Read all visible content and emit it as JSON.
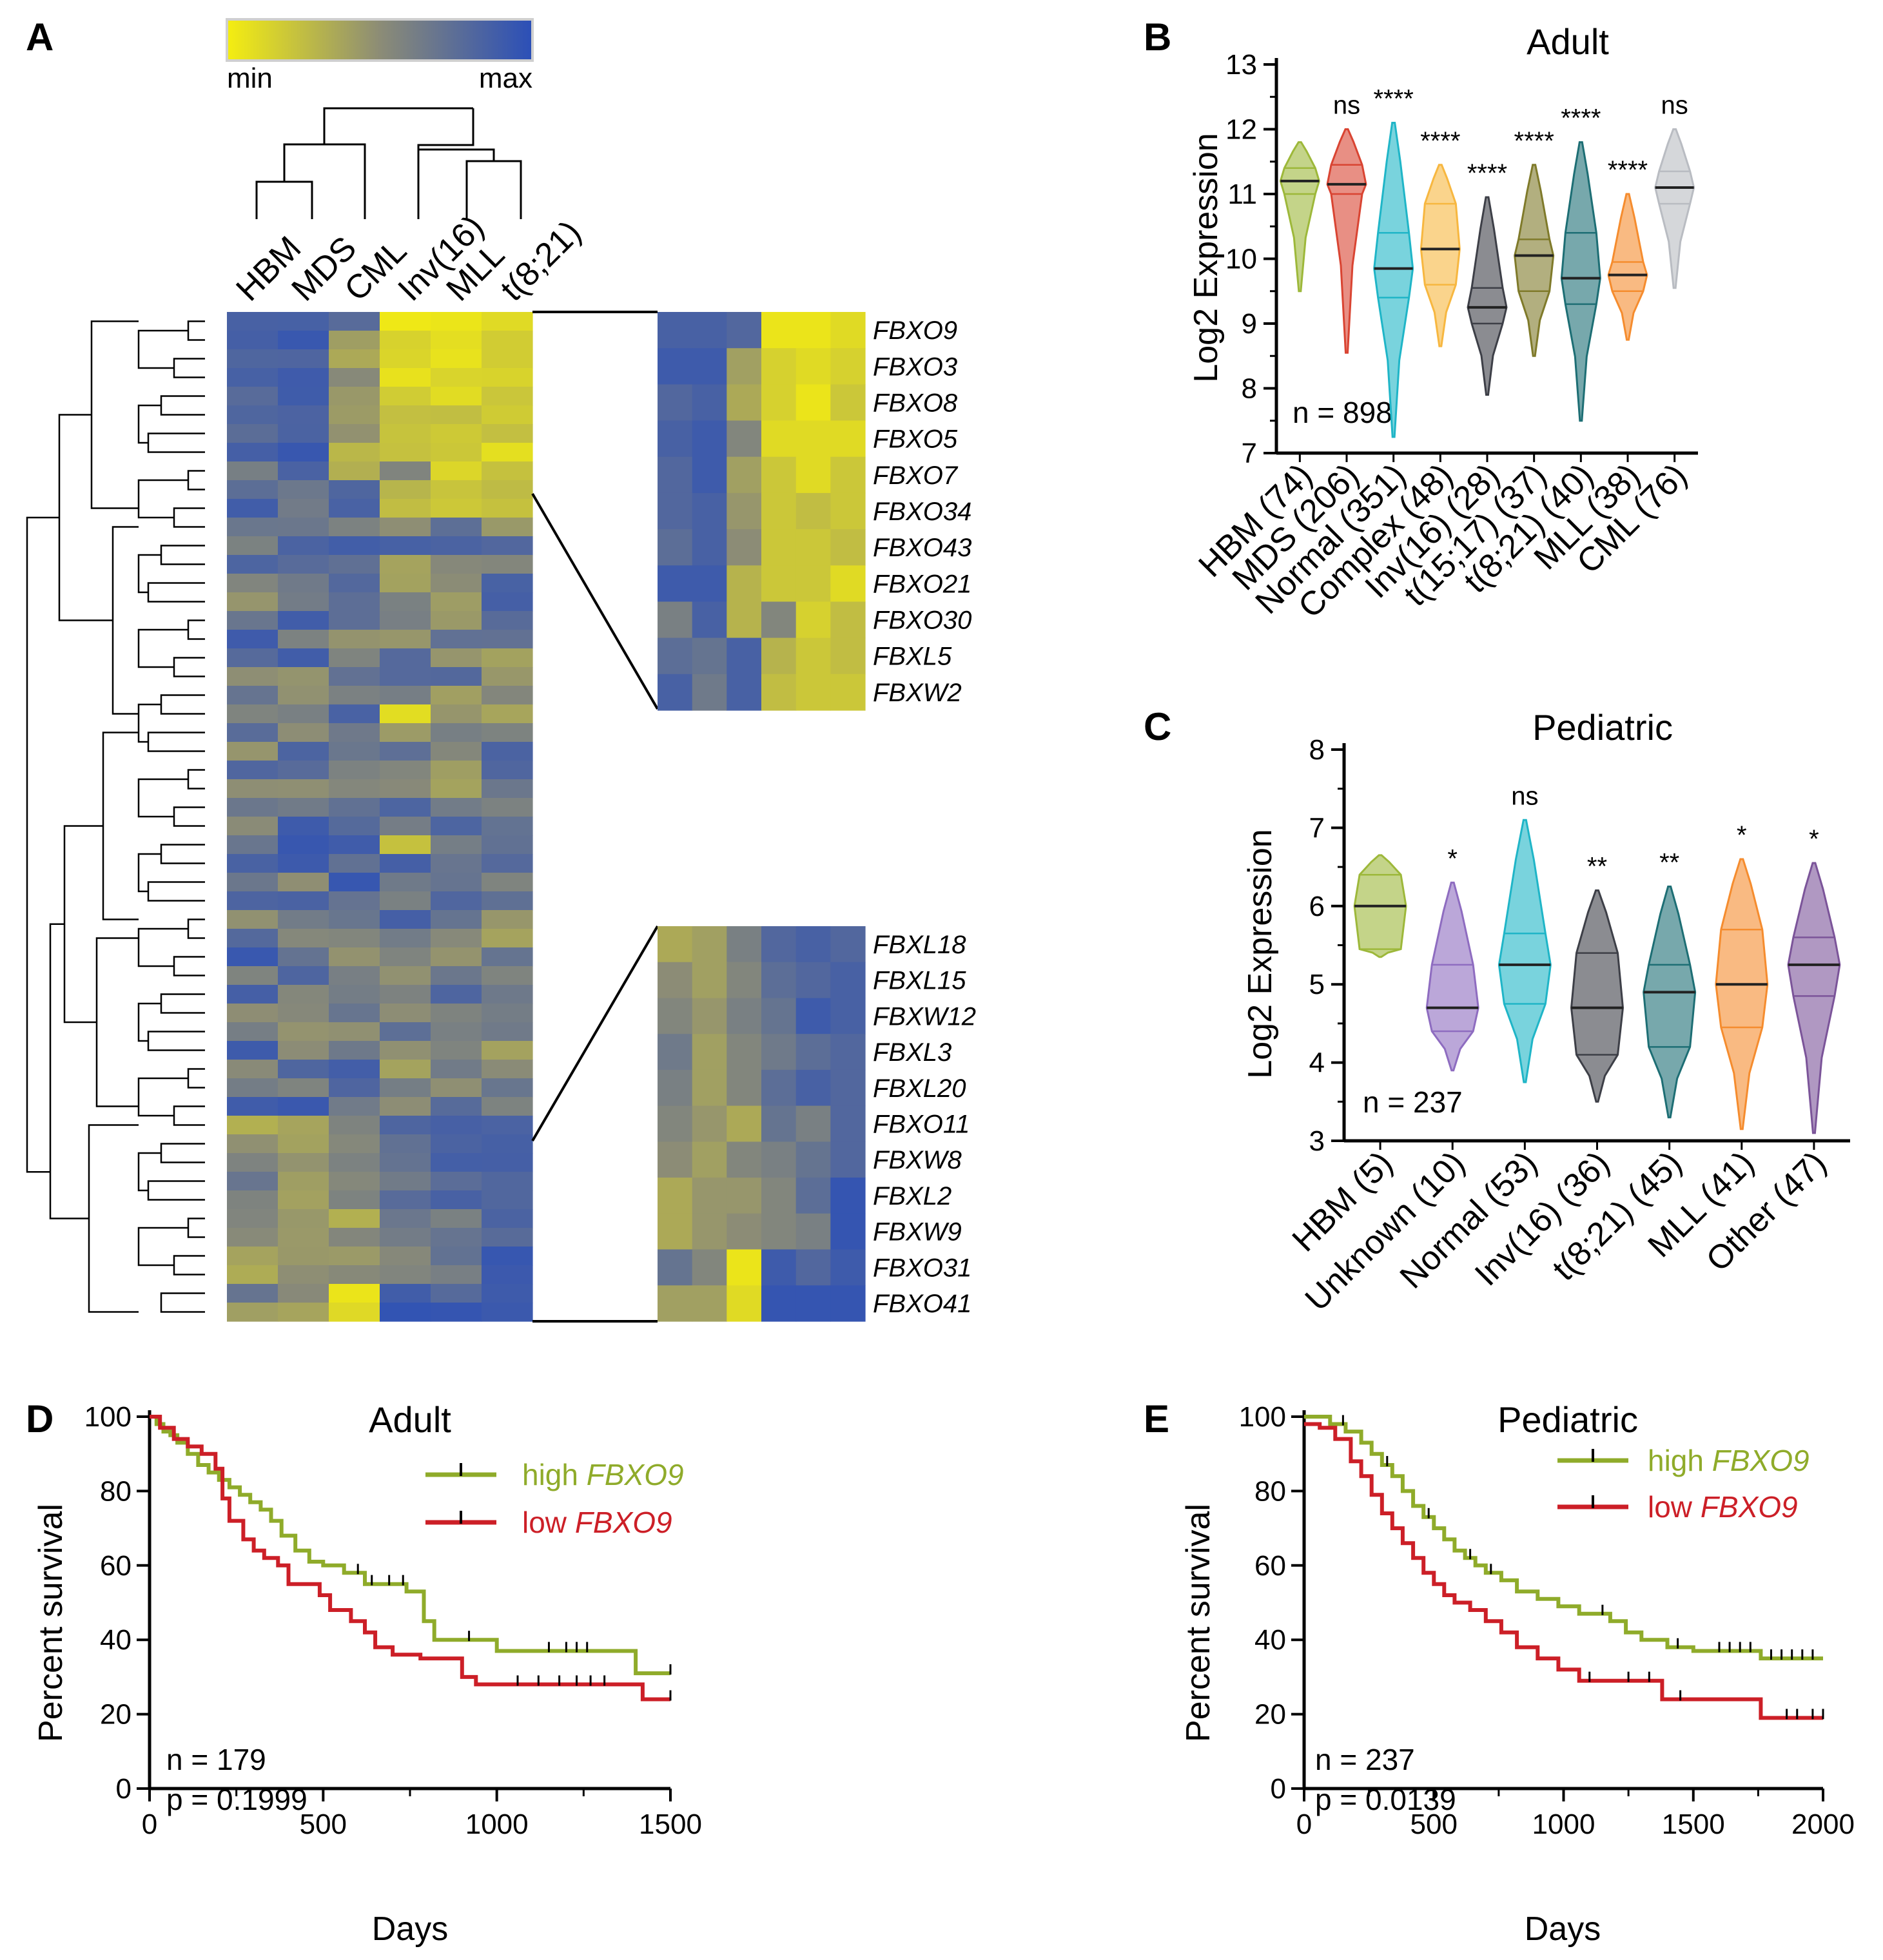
{
  "panels": {
    "a": "A",
    "b": "B",
    "c": "C",
    "d": "D",
    "e": "E"
  },
  "colors": {
    "heat_low": "#F5EE10",
    "heat_mid": "#8C8C76",
    "heat_high": "#2B4FB8",
    "green": "#8FAB2A",
    "red": "#CC1F27"
  },
  "heatmap": {
    "legend_min": "min",
    "legend_max": "max",
    "columns": [
      "HBM",
      "MDS",
      "CML",
      "Inv(16)",
      "MLL",
      "t(8;21)"
    ],
    "top_genes": [
      "FBXO9",
      "FBXO3",
      "FBXO8",
      "FBXO5",
      "FBXO7",
      "FBXO34",
      "FBXO43",
      "FBXO21",
      "FBXO30",
      "FBXL5",
      "FBXW2"
    ],
    "bottom_genes": [
      "FBXL18",
      "FBXL15",
      "FBXW12",
      "FBXL3",
      "FBXL20",
      "FBXO11",
      "FBXW8",
      "FBXL2",
      "FBXW9",
      "FBXO31",
      "FBXO41"
    ],
    "top_values": [
      [
        0.85,
        0.85,
        0.8,
        0.05,
        0.05,
        0.1
      ],
      [
        0.9,
        0.9,
        0.4,
        0.15,
        0.1,
        0.15
      ],
      [
        0.8,
        0.85,
        0.35,
        0.15,
        0.05,
        0.2
      ],
      [
        0.85,
        0.9,
        0.55,
        0.1,
        0.1,
        0.1
      ],
      [
        0.8,
        0.9,
        0.4,
        0.2,
        0.1,
        0.2
      ],
      [
        0.8,
        0.85,
        0.45,
        0.2,
        0.25,
        0.2
      ],
      [
        0.75,
        0.85,
        0.5,
        0.2,
        0.2,
        0.25
      ],
      [
        0.9,
        0.9,
        0.3,
        0.2,
        0.2,
        0.1
      ],
      [
        0.6,
        0.85,
        0.3,
        0.55,
        0.15,
        0.25
      ],
      [
        0.75,
        0.7,
        0.85,
        0.3,
        0.2,
        0.25
      ],
      [
        0.85,
        0.65,
        0.85,
        0.25,
        0.2,
        0.2
      ]
    ],
    "bottom_values": [
      [
        0.35,
        0.4,
        0.6,
        0.8,
        0.85,
        0.8
      ],
      [
        0.5,
        0.4,
        0.55,
        0.75,
        0.8,
        0.85
      ],
      [
        0.55,
        0.45,
        0.6,
        0.7,
        0.9,
        0.85
      ],
      [
        0.65,
        0.4,
        0.55,
        0.65,
        0.75,
        0.8
      ],
      [
        0.6,
        0.4,
        0.55,
        0.75,
        0.85,
        0.8
      ],
      [
        0.55,
        0.45,
        0.35,
        0.7,
        0.6,
        0.8
      ],
      [
        0.5,
        0.4,
        0.55,
        0.6,
        0.7,
        0.8
      ],
      [
        0.35,
        0.45,
        0.45,
        0.55,
        0.75,
        0.95
      ],
      [
        0.35,
        0.45,
        0.5,
        0.55,
        0.6,
        0.95
      ],
      [
        0.7,
        0.55,
        0.05,
        0.9,
        0.8,
        0.9
      ],
      [
        0.4,
        0.4,
        0.1,
        0.95,
        0.95,
        0.95
      ]
    ]
  },
  "panel_b": {
    "title": "Adult",
    "ylabel": "Log2 Expression",
    "n_label": "n = 898",
    "chart_data": {
      "type": "violin",
      "ylim": [
        7,
        13
      ],
      "yticks": [
        7,
        8,
        9,
        10,
        11,
        12,
        13
      ],
      "categories": [
        "HBM (74)",
        "MDS (206)",
        "Normal (351)",
        "Complex (48)",
        "Inv(16) (28)",
        "t(15;17) (37)",
        "t(8;21) (40)",
        "MLL (38)",
        "CML (76)"
      ],
      "colors": [
        "#9DB83A",
        "#D94432",
        "#1FB5C7",
        "#F7B740",
        "#3D3F47",
        "#7F7A2A",
        "#1D6E74",
        "#F58C2E",
        "#B9BCC2"
      ],
      "min": [
        9.5,
        8.55,
        7.25,
        8.65,
        7.9,
        8.5,
        7.5,
        8.75,
        9.55
      ],
      "max": [
        11.8,
        12.0,
        12.1,
        11.45,
        10.95,
        11.45,
        11.8,
        11.0,
        12.0
      ],
      "q1": [
        11.0,
        11.0,
        9.4,
        9.6,
        9.0,
        9.5,
        9.3,
        9.5,
        10.85
      ],
      "median": [
        11.2,
        11.15,
        9.85,
        10.15,
        9.25,
        10.05,
        9.7,
        9.75,
        11.1
      ],
      "q3": [
        11.4,
        11.45,
        10.4,
        10.85,
        9.55,
        10.3,
        10.4,
        9.95,
        11.35
      ],
      "significance": [
        "",
        "ns",
        "****",
        "****",
        "****",
        "****",
        "****",
        "****",
        "ns"
      ]
    }
  },
  "panel_c": {
    "title": "Pediatric",
    "ylabel": "Log2 Expression",
    "n_label": "n = 237",
    "chart_data": {
      "type": "violin",
      "ylim": [
        3,
        8
      ],
      "yticks": [
        3,
        4,
        5,
        6,
        7,
        8
      ],
      "categories": [
        "HBM (5)",
        "Unknown (10)",
        "Normal (53)",
        "Inv(16) (36)",
        "t(8;21) (45)",
        "MLL (41)",
        "Other (47)"
      ],
      "colors": [
        "#9DB83A",
        "#8E6CC0",
        "#1FB5C7",
        "#3D3F47",
        "#1D6E74",
        "#F58C2E",
        "#7B5499"
      ],
      "min": [
        5.35,
        3.9,
        3.75,
        3.5,
        3.3,
        3.15,
        3.1
      ],
      "max": [
        6.65,
        6.3,
        7.1,
        6.2,
        6.25,
        6.6,
        6.55
      ],
      "q1": [
        5.45,
        4.4,
        4.75,
        4.1,
        4.2,
        4.45,
        4.85
      ],
      "median": [
        6.0,
        4.7,
        5.25,
        4.7,
        4.9,
        5.0,
        5.25
      ],
      "q3": [
        6.4,
        5.25,
        5.65,
        5.4,
        5.25,
        5.7,
        5.6
      ],
      "significance": [
        "",
        "*",
        "ns",
        "**",
        "**",
        "*",
        "*"
      ]
    }
  },
  "panel_d": {
    "title": "Adult",
    "ylabel": "Percent survival",
    "xlabel": "Days",
    "n_label": "n = 179",
    "p_label": "p = 0.1999",
    "legend": {
      "high_prefix": "high ",
      "low_prefix": "low ",
      "gene": "FBXO9"
    },
    "chart_data": {
      "type": "kaplan-meier",
      "xlim": [
        0,
        1500
      ],
      "ylim": [
        0,
        100
      ],
      "xticks": [
        0,
        500,
        1000,
        1500
      ],
      "yticks": [
        0,
        20,
        40,
        60,
        80,
        100
      ],
      "series": [
        {
          "name": "high FBXO9",
          "color": "#8FAB2A",
          "x": [
            0,
            20,
            40,
            60,
            80,
            110,
            140,
            170,
            200,
            230,
            260,
            290,
            320,
            350,
            380,
            420,
            460,
            500,
            560,
            620,
            700,
            740,
            790,
            820,
            900,
            1000,
            1100,
            1400,
            1500
          ],
          "y": [
            100,
            98,
            96,
            95,
            93,
            90,
            87,
            85,
            83,
            81,
            79,
            77,
            75,
            72,
            68,
            64,
            61,
            60,
            58,
            55,
            55,
            53,
            45,
            40,
            40,
            37,
            37,
            31,
            31
          ],
          "censored_x": [
            600,
            640,
            690,
            730,
            920,
            1150,
            1200,
            1230,
            1260,
            1500
          ]
        },
        {
          "name": "low FBXO9",
          "color": "#CC1F27",
          "x": [
            0,
            30,
            70,
            110,
            150,
            190,
            210,
            230,
            270,
            300,
            330,
            370,
            400,
            450,
            490,
            520,
            580,
            620,
            650,
            700,
            780,
            850,
            900,
            940,
            1000,
            1200,
            1420,
            1500
          ],
          "y": [
            100,
            97,
            94,
            92,
            90,
            86,
            78,
            72,
            67,
            64,
            62,
            60,
            55,
            55,
            52,
            48,
            45,
            42,
            38,
            36,
            35,
            35,
            30,
            28,
            28,
            28,
            24,
            24
          ],
          "censored_x": [
            1060,
            1120,
            1180,
            1230,
            1270,
            1310,
            1500
          ]
        }
      ]
    }
  },
  "panel_e": {
    "title": "Pediatric",
    "ylabel": "Percent survival",
    "xlabel": "Days",
    "n_label": "n = 237",
    "p_label": "p = 0.0139",
    "legend": {
      "high_prefix": "high ",
      "low_prefix": "low ",
      "gene": "FBXO9"
    },
    "chart_data": {
      "type": "kaplan-meier",
      "xlim": [
        0,
        2000
      ],
      "ylim": [
        0,
        100
      ],
      "xticks": [
        0,
        500,
        1000,
        1500,
        2000
      ],
      "yticks": [
        0,
        20,
        40,
        60,
        80,
        100
      ],
      "series": [
        {
          "name": "high FBXO9",
          "color": "#8FAB2A",
          "x": [
            0,
            100,
            160,
            220,
            260,
            300,
            340,
            380,
            420,
            460,
            500,
            540,
            580,
            620,
            660,
            700,
            760,
            820,
            900,
            980,
            1060,
            1120,
            1180,
            1240,
            1300,
            1400,
            1500,
            1600,
            1700,
            1760,
            2000
          ],
          "y": [
            100,
            98,
            96,
            93,
            90,
            87,
            84,
            80,
            76,
            73,
            70,
            67,
            64,
            62,
            60,
            58,
            56,
            53,
            51,
            49,
            47,
            47,
            45,
            42,
            40,
            38,
            37,
            37,
            37,
            35,
            35
          ],
          "censored_x": [
            150,
            320,
            480,
            640,
            720,
            1150,
            1440,
            1600,
            1640,
            1680,
            1720,
            1800,
            1840,
            1880,
            1920,
            1960
          ]
        },
        {
          "name": "low FBXO9",
          "color": "#CC1F27",
          "x": [
            0,
            60,
            120,
            180,
            220,
            260,
            300,
            340,
            380,
            420,
            460,
            500,
            540,
            580,
            640,
            700,
            760,
            820,
            900,
            980,
            1060,
            1200,
            1380,
            1500,
            1600,
            1760,
            2000
          ],
          "y": [
            98,
            97,
            94,
            88,
            84,
            79,
            74,
            70,
            66,
            62,
            58,
            55,
            52,
            50,
            48,
            45,
            42,
            38,
            35,
            32,
            29,
            29,
            24,
            24,
            24,
            19,
            19
          ],
          "censored_x": [
            1100,
            1250,
            1330,
            1450,
            1860,
            1900,
            1960,
            2000
          ]
        }
      ]
    }
  }
}
